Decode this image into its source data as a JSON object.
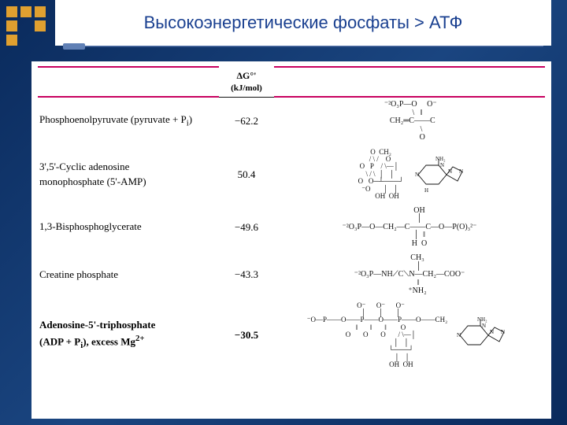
{
  "slide": {
    "title": "Высокоэнергетические фосфаты > АТФ",
    "background_gradient": [
      "#0a2a5c",
      "#1a4580",
      "#0a2a5c"
    ],
    "accent_color": "#e0a030",
    "divider_color": "#c8005f",
    "title_color": "#1a4090"
  },
  "table": {
    "header": {
      "dg_label": "ΔG°'",
      "dg_unit": "(kJ/mol)"
    },
    "rows": [
      {
        "name_html": "Phosphoenolpyruvate (pyruvate + P<sub>i</sub>)",
        "value": "−62.2",
        "bold": false,
        "struct_key": "pep"
      },
      {
        "name_html": "3',5'-Cyclic adenosine<br>monophosphate (5'-AMP)",
        "value": "50.4",
        "bold": false,
        "struct_key": "camp"
      },
      {
        "name_html": "1,3-Bisphosphoglycerate",
        "value": "−49.6",
        "bold": false,
        "struct_key": "bpg"
      },
      {
        "name_html": "Creatine phosphate",
        "value": "−43.3",
        "bold": false,
        "struct_key": "crp"
      },
      {
        "name_html": "Adenosine-5'-triphosphate<br>(ADP + P<sub>i</sub>), excess Mg<sup>2+</sup>",
        "value": "−30.5",
        "bold": true,
        "struct_key": "atp"
      }
    ],
    "structures": {
      "pep": " ⁻²O₃P—O     O⁻\n        \\   ‖\n   CH₂═C——C\n            \\\n             O",
      "camp_left": "     O  CH₂\n    / \\ /    O\n   O   P    / \\―│\n    \\ / \\  │   │\n     O   O─┴───┘\n    ⁻O       │   │\n            OH  OH",
      "bpg": "          OH\n          │\n⁻²O₃P—O—CH₂—C——C—O—P(O)₃²⁻\n          │  ‖\n          H  O",
      "crp": "        CH₃\n         │\n⁻²O₃P—NH⟋C⟍N—CH₂—COO⁻\n         ‖\n        ⁺NH₂",
      "atp_left": "    O⁻      O⁻      O⁻\n    │       │       │\n⁻O—P——O——P——O——P——O——CH₂\n    ‖       ‖       ‖        O\n    O       O       O       / \\―│\n                           │   │\n                           └───┘\n                            │   │\n                           OH  OH"
    }
  }
}
